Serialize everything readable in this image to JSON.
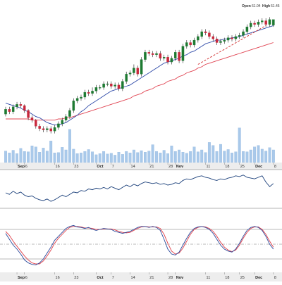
{
  "header": {
    "open_label": "Open",
    "open_value": "61.04",
    "high_label": "High",
    "high_value": "61.45"
  },
  "colors": {
    "up": "#1e7a32",
    "down": "#c8283c",
    "ma_fast": "#2e4aa8",
    "ma_slow": "#e04452",
    "trend": "#d43c3c",
    "volume": "#a9c9ea",
    "volume_edge": "#8fb4dd",
    "panel_line": "#1a3f7a",
    "k_line": "#2b4a9c",
    "d_line": "#e0404a",
    "axis_band": "#ededed",
    "grid": "#cfcfcf"
  },
  "chart_data": [
    {
      "type": "candlestick",
      "panel": "price",
      "dates": [
        "2016-08-29",
        "2016-08-30",
        "2016-08-31",
        "2016-09-01",
        "2016-09-02",
        "2016-09-06",
        "2016-09-07",
        "2016-09-08",
        "2016-09-09",
        "2016-09-12",
        "2016-09-13",
        "2016-09-14",
        "2016-09-15",
        "2016-09-16",
        "2016-09-19",
        "2016-09-20",
        "2016-09-21",
        "2016-09-22",
        "2016-09-23",
        "2016-09-26",
        "2016-09-27",
        "2016-09-28",
        "2016-09-29",
        "2016-09-30",
        "2016-10-03",
        "2016-10-04",
        "2016-10-05",
        "2016-10-06",
        "2016-10-07",
        "2016-10-10",
        "2016-10-11",
        "2016-10-12",
        "2016-10-13",
        "2016-10-14",
        "2016-10-17",
        "2016-10-18",
        "2016-10-19",
        "2016-10-20",
        "2016-10-21",
        "2016-10-24",
        "2016-10-25",
        "2016-10-26",
        "2016-10-27",
        "2016-10-28",
        "2016-10-31",
        "2016-11-01",
        "2016-11-02",
        "2016-11-03",
        "2016-11-04",
        "2016-11-07",
        "2016-11-08",
        "2016-11-09",
        "2016-11-10",
        "2016-11-11",
        "2016-11-14",
        "2016-11-15",
        "2016-11-16",
        "2016-11-17",
        "2016-11-18",
        "2016-11-21",
        "2016-11-22",
        "2016-11-23",
        "2016-11-25",
        "2016-11-28",
        "2016-11-29",
        "2016-11-30",
        "2016-12-01",
        "2016-12-02",
        "2016-12-05",
        "2016-12-06",
        "2016-12-07",
        "2016-12-08"
      ],
      "close": [
        54.1,
        53.9,
        54.3,
        54.5,
        54.4,
        54.0,
        53.4,
        53.2,
        52.7,
        52.5,
        52.4,
        52.5,
        52.3,
        52.6,
        52.9,
        53.2,
        53.5,
        54.0,
        54.8,
        55.0,
        55.1,
        55.5,
        55.4,
        55.6,
        55.9,
        55.9,
        56.2,
        56.2,
        56.0,
        56.1,
        55.8,
        56.4,
        57.0,
        57.1,
        57.5,
        57.0,
        58.2,
        58.8,
        58.7,
        58.6,
        58.7,
        58.3,
        58.4,
        58.0,
        58.3,
        58.8,
        58.1,
        59.3,
        59.6,
        59.4,
        59.8,
        60.1,
        60.5,
        60.4,
        60.1,
        59.9,
        59.6,
        59.7,
        59.8,
        60.0,
        59.9,
        60.1,
        60.2,
        60.5,
        60.9,
        61.2,
        61.1,
        61.3,
        61.4,
        61.1,
        61.5,
        61.5
      ],
      "open": [
        53.7,
        54.1,
        53.9,
        54.3,
        54.5,
        54.4,
        54.0,
        53.4,
        53.2,
        52.7,
        52.5,
        52.4,
        52.5,
        52.3,
        52.6,
        52.9,
        53.2,
        53.5,
        54.0,
        54.8,
        55.0,
        55.1,
        55.5,
        55.4,
        55.6,
        55.9,
        55.9,
        56.2,
        56.2,
        56.0,
        56.1,
        55.8,
        56.4,
        57.0,
        57.1,
        57.5,
        57.0,
        58.2,
        58.8,
        58.7,
        58.6,
        58.7,
        58.3,
        58.4,
        58.0,
        58.3,
        58.8,
        58.1,
        59.3,
        59.6,
        59.4,
        59.8,
        60.1,
        60.5,
        60.4,
        60.1,
        59.9,
        59.6,
        59.7,
        59.8,
        60.0,
        59.9,
        60.1,
        60.2,
        60.5,
        60.9,
        61.2,
        61.1,
        61.3,
        61.4,
        61.1,
        61.04
      ],
      "high": [
        54.3,
        54.3,
        54.5,
        54.7,
        54.7,
        54.5,
        54.1,
        53.6,
        53.3,
        52.9,
        52.7,
        52.7,
        52.7,
        52.8,
        53.1,
        53.4,
        53.7,
        54.2,
        55.0,
        55.2,
        55.3,
        55.7,
        55.7,
        55.9,
        56.1,
        56.1,
        56.4,
        56.4,
        56.4,
        56.3,
        56.3,
        56.6,
        57.2,
        57.3,
        57.8,
        57.7,
        58.4,
        59.0,
        59.0,
        58.9,
        58.9,
        58.9,
        58.6,
        58.6,
        58.5,
        59.0,
        59.0,
        59.5,
        59.8,
        59.8,
        60.0,
        60.3,
        60.7,
        60.7,
        60.6,
        60.3,
        60.1,
        59.9,
        60.0,
        60.2,
        60.2,
        60.3,
        60.4,
        60.7,
        61.1,
        61.4,
        61.4,
        61.5,
        61.6,
        61.6,
        61.7,
        61.45
      ],
      "low": [
        53.5,
        53.7,
        53.7,
        54.1,
        54.2,
        53.8,
        53.2,
        53.0,
        52.5,
        52.3,
        52.2,
        52.2,
        52.1,
        52.1,
        52.4,
        52.7,
        53.0,
        53.3,
        53.8,
        54.6,
        54.8,
        54.9,
        55.2,
        55.2,
        55.4,
        55.7,
        55.7,
        56.0,
        55.8,
        55.8,
        55.6,
        55.6,
        56.2,
        56.8,
        56.9,
        56.8,
        56.8,
        58.0,
        58.5,
        58.4,
        58.4,
        58.1,
        58.1,
        57.8,
        57.8,
        58.1,
        57.9,
        57.9,
        59.1,
        59.2,
        59.2,
        59.6,
        59.9,
        60.2,
        59.9,
        59.7,
        59.4,
        59.4,
        59.5,
        59.6,
        59.7,
        59.7,
        59.9,
        60.0,
        60.3,
        60.7,
        60.9,
        60.9,
        61.1,
        60.9,
        60.9,
        60.9
      ],
      "ma_fast_values": [
        54.6,
        54.5,
        54.4,
        54.3,
        54.2,
        54.0,
        53.9,
        53.7,
        53.5,
        53.4,
        53.2,
        53.0,
        52.9,
        52.8,
        52.8,
        52.9,
        53.0,
        53.2,
        53.4,
        53.6,
        53.9,
        54.1,
        54.4,
        54.6,
        54.8,
        55.0,
        55.2,
        55.4,
        55.6,
        55.7,
        55.8,
        55.9,
        56.0,
        56.1,
        56.3,
        56.5,
        56.7,
        56.9,
        57.1,
        57.3,
        57.5,
        57.7,
        57.9,
        58.0,
        58.1,
        58.2,
        58.3,
        58.5,
        58.6,
        58.8,
        58.9,
        59.1,
        59.3,
        59.5,
        59.6,
        59.7,
        59.8,
        59.8,
        59.9,
        59.9,
        60.0,
        60.0,
        60.1,
        60.2,
        60.3,
        60.4,
        60.5,
        60.6,
        60.7,
        60.8,
        60.9,
        61.0
      ],
      "ma_slow_values": [
        53.3,
        53.3,
        53.3,
        53.3,
        53.3,
        53.3,
        53.3,
        53.2,
        53.2,
        53.2,
        53.2,
        53.2,
        53.2,
        53.2,
        53.3,
        53.3,
        53.4,
        53.4,
        53.5,
        53.6,
        53.7,
        53.8,
        53.9,
        54.0,
        54.1,
        54.2,
        54.3,
        54.4,
        54.5,
        54.6,
        54.7,
        54.8,
        54.9,
        55.0,
        55.2,
        55.3,
        55.4,
        55.6,
        55.7,
        55.8,
        56.0,
        56.1,
        56.2,
        56.4,
        56.5,
        56.6,
        56.8,
        56.9,
        57.1,
        57.2,
        57.3,
        57.5,
        57.6,
        57.8,
        57.9,
        58.0,
        58.1,
        58.2,
        58.3,
        58.4,
        58.5,
        58.6,
        58.7,
        58.8,
        58.9,
        59.0,
        59.1,
        59.2,
        59.3,
        59.4,
        59.5,
        59.6
      ],
      "trendline": {
        "from_date": "2016-11-09",
        "from_value": 57.8,
        "to_date": "2016-12-06",
        "to_value": 61.0
      },
      "ylim": [
        51.5,
        62.3
      ],
      "grid": false
    },
    {
      "type": "bar",
      "panel": "volume",
      "values": [
        3.1,
        2.6,
        3.3,
        2.4,
        3.8,
        3.0,
        2.9,
        4.5,
        4.2,
        2.8,
        3.9,
        3.1,
        5.8,
        2.6,
        2.7,
        4.1,
        3.4,
        8.9,
        3.6,
        2.4,
        2.6,
        3.0,
        3.5,
        2.9,
        2.1,
        2.4,
        3.0,
        2.3,
        2.5,
        2.0,
        2.8,
        2.2,
        3.0,
        2.6,
        3.4,
        2.7,
        3.2,
        2.8,
        3.1,
        4.8,
        3.0,
        2.6,
        3.3,
        2.4,
        4.5,
        3.0,
        3.4,
        2.8,
        2.5,
        3.0,
        4.2,
        2.9,
        3.4,
        2.7,
        5.4,
        4.6,
        3.0,
        4.9,
        3.1,
        3.5,
        2.6,
        2.9,
        9.3,
        3.0,
        2.9,
        3.4,
        4.2,
        4.6,
        3.6,
        3.1,
        4.0,
        3.4
      ],
      "ylim": [
        0,
        10
      ],
      "grid": false
    },
    {
      "type": "line",
      "panel": "indicator",
      "values": [
        50,
        48,
        52,
        49,
        51,
        47,
        45,
        46,
        43,
        41,
        40,
        42,
        39,
        41,
        44,
        47,
        45,
        48,
        51,
        50,
        53,
        52,
        55,
        54,
        56,
        55,
        57,
        55,
        58,
        56,
        54,
        57,
        60,
        58,
        61,
        59,
        62,
        64,
        63,
        62,
        63,
        61,
        62,
        60,
        61,
        63,
        62,
        66,
        68,
        67,
        69,
        71,
        72,
        70,
        69,
        67,
        66,
        68,
        67,
        69,
        70,
        72,
        71,
        73,
        70,
        69,
        68,
        70,
        72,
        64,
        58,
        62
      ],
      "ylim": [
        30,
        80
      ],
      "grid": false
    },
    {
      "type": "line",
      "panel": "oscillator",
      "series": [
        {
          "key": "k",
          "values": [
            72,
            60,
            48,
            40,
            30,
            18,
            12,
            9,
            8,
            12,
            20,
            32,
            44,
            58,
            66,
            74,
            82,
            86,
            88,
            85,
            84,
            82,
            84,
            80,
            78,
            80,
            82,
            81,
            80,
            76,
            74,
            72,
            74,
            76,
            80,
            84,
            86,
            86,
            84,
            86,
            84,
            78,
            60,
            40,
            30,
            28,
            34,
            48,
            62,
            74,
            82,
            85,
            86,
            84,
            80,
            72,
            60,
            48,
            40,
            36,
            34,
            40,
            52,
            66,
            78,
            84,
            86,
            84,
            78,
            66,
            50,
            40
          ]
        },
        {
          "key": "d",
          "values": [
            76,
            68,
            56,
            46,
            36,
            26,
            18,
            12,
            10,
            10,
            16,
            26,
            38,
            52,
            62,
            70,
            78,
            84,
            86,
            86,
            85,
            83,
            83,
            82,
            80,
            80,
            81,
            81,
            81,
            79,
            76,
            74,
            73,
            74,
            78,
            82,
            85,
            86,
            85,
            85,
            85,
            82,
            70,
            52,
            36,
            30,
            32,
            42,
            56,
            70,
            80,
            84,
            86,
            85,
            82,
            76,
            66,
            54,
            44,
            38,
            35,
            38,
            48,
            62,
            74,
            82,
            85,
            85,
            80,
            70,
            56,
            44
          ]
        }
      ],
      "reference_lines": [
        80,
        50,
        20
      ],
      "ylim": [
        0,
        100
      ],
      "grid": false
    }
  ],
  "axis": {
    "month_labels": [
      {
        "date": "2016-09-01",
        "label": "Sep"
      },
      {
        "date": "2016-10-03",
        "label": "Oct"
      },
      {
        "date": "2016-11-01",
        "label": "Nov"
      },
      {
        "date": "2016-12-01",
        "label": "Dec"
      }
    ],
    "day_labels": [
      {
        "date": "2016-09-06",
        "label": "6"
      },
      {
        "date": "2016-09-16",
        "label": "16"
      },
      {
        "date": "2016-09-23",
        "label": "23"
      },
      {
        "date": "2016-10-07",
        "label": "7"
      },
      {
        "date": "2016-10-14",
        "label": "14"
      },
      {
        "date": "2016-10-21",
        "label": "21"
      },
      {
        "date": "2016-10-28",
        "label": "28"
      },
      {
        "date": "2016-11-11",
        "label": "11"
      },
      {
        "date": "2016-11-18",
        "label": "18"
      },
      {
        "date": "2016-11-25",
        "label": "25"
      },
      {
        "date": "2016-12-08",
        "label": "8"
      }
    ]
  }
}
